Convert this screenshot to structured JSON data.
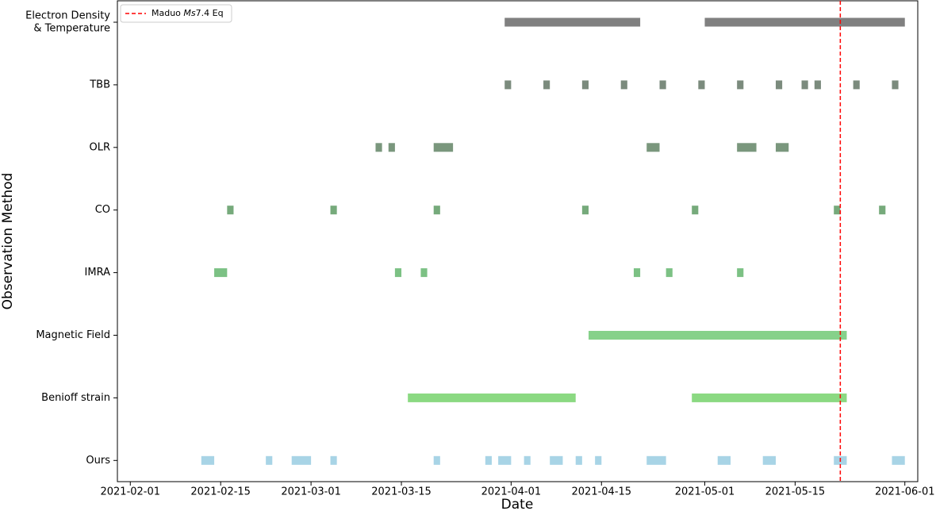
{
  "chart_data": {
    "type": "timeline",
    "xlabel": "Date",
    "ylabel": "Observation Method",
    "xlim": [
      "2021-01-30",
      "2021-06-03"
    ],
    "xticks": [
      "2021-02-01",
      "2021-02-15",
      "2021-03-01",
      "2021-03-15",
      "2021-04-01",
      "2021-04-15",
      "2021-05-01",
      "2021-05-15",
      "2021-06-01"
    ],
    "event": {
      "date": "2021-05-22",
      "label_parts": [
        "Maduo ",
        "Ms",
        "7.4 Eq"
      ],
      "color": "#ff0000"
    },
    "legend": "upper left",
    "rows": [
      {
        "label": [
          "Electron Density",
          "& Temperature"
        ],
        "color": "#808080",
        "segments": [
          [
            "2021-03-31",
            "2021-04-21"
          ],
          [
            "2021-05-01",
            "2021-06-01"
          ]
        ]
      },
      {
        "label": [
          "TBB"
        ],
        "color": "#7b8b7d",
        "segments": [
          [
            "2021-03-31",
            "2021-04-01"
          ],
          [
            "2021-04-06",
            "2021-04-07"
          ],
          [
            "2021-04-12",
            "2021-04-13"
          ],
          [
            "2021-04-18",
            "2021-04-19"
          ],
          [
            "2021-04-24",
            "2021-04-25"
          ],
          [
            "2021-04-30",
            "2021-05-01"
          ],
          [
            "2021-05-06",
            "2021-05-07"
          ],
          [
            "2021-05-12",
            "2021-05-13"
          ],
          [
            "2021-05-16",
            "2021-05-17"
          ],
          [
            "2021-05-18",
            "2021-05-19"
          ],
          [
            "2021-05-24",
            "2021-05-25"
          ],
          [
            "2021-05-30",
            "2021-05-31"
          ]
        ]
      },
      {
        "label": [
          "OLR"
        ],
        "color": "#7a977d",
        "segments": [
          [
            "2021-03-11",
            "2021-03-12"
          ],
          [
            "2021-03-13",
            "2021-03-14"
          ],
          [
            "2021-03-20",
            "2021-03-23"
          ],
          [
            "2021-04-22",
            "2021-04-24"
          ],
          [
            "2021-05-06",
            "2021-05-09"
          ],
          [
            "2021-05-12",
            "2021-05-14"
          ]
        ]
      },
      {
        "label": [
          "CO"
        ],
        "color": "#76aa7b",
        "segments": [
          [
            "2021-02-16",
            "2021-02-17"
          ],
          [
            "2021-03-04",
            "2021-03-05"
          ],
          [
            "2021-03-20",
            "2021-03-21"
          ],
          [
            "2021-04-12",
            "2021-04-13"
          ],
          [
            "2021-04-29",
            "2021-04-30"
          ],
          [
            "2021-05-21",
            "2021-05-22"
          ],
          [
            "2021-05-28",
            "2021-05-29"
          ]
        ]
      },
      {
        "label": [
          "IMRA"
        ],
        "color": "#7cc184",
        "segments": [
          [
            "2021-02-14",
            "2021-02-16"
          ],
          [
            "2021-03-14",
            "2021-03-15"
          ],
          [
            "2021-03-18",
            "2021-03-19"
          ],
          [
            "2021-04-20",
            "2021-04-21"
          ],
          [
            "2021-04-25",
            "2021-04-26"
          ],
          [
            "2021-05-06",
            "2021-05-07"
          ]
        ]
      },
      {
        "label": [
          "Magnetic Field"
        ],
        "color": "#86d18a",
        "segments": [
          [
            "2021-04-13",
            "2021-05-23"
          ]
        ]
      },
      {
        "label": [
          "Benioff strain"
        ],
        "color": "#8bd982",
        "segments": [
          [
            "2021-03-16",
            "2021-04-11"
          ],
          [
            "2021-04-29",
            "2021-05-23"
          ]
        ]
      },
      {
        "label": [
          "Ours"
        ],
        "color": "#a8d4e6",
        "segments": [
          [
            "2021-02-12",
            "2021-02-14"
          ],
          [
            "2021-02-22",
            "2021-02-23"
          ],
          [
            "2021-02-26",
            "2021-03-01"
          ],
          [
            "2021-03-04",
            "2021-03-05"
          ],
          [
            "2021-03-20",
            "2021-03-21"
          ],
          [
            "2021-03-28",
            "2021-03-29"
          ],
          [
            "2021-03-30",
            "2021-04-01"
          ],
          [
            "2021-04-03",
            "2021-04-04"
          ],
          [
            "2021-04-07",
            "2021-04-09"
          ],
          [
            "2021-04-11",
            "2021-04-12"
          ],
          [
            "2021-04-14",
            "2021-04-15"
          ],
          [
            "2021-04-22",
            "2021-04-25"
          ],
          [
            "2021-05-03",
            "2021-05-05"
          ],
          [
            "2021-05-10",
            "2021-05-12"
          ],
          [
            "2021-05-21",
            "2021-05-23"
          ],
          [
            "2021-05-30",
            "2021-06-01"
          ]
        ]
      }
    ]
  }
}
